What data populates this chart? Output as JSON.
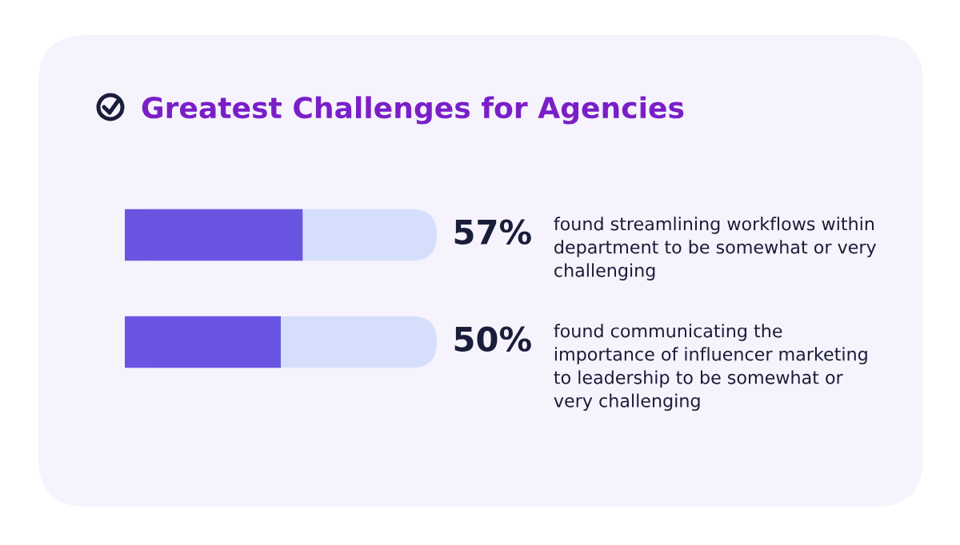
{
  "chart_data": {
    "type": "bar",
    "orientation": "horizontal",
    "title": "Greatest Challenges for Agencies",
    "categories": [
      "found streamlining workflows within\ndepartment to be somewhat or very\nchallenging",
      "found communicating the\nimportance of influencer marketing\nto leadership to be somewhat or\nvery challenging"
    ],
    "values": [
      57,
      50
    ],
    "value_labels": [
      "57%",
      "50%"
    ],
    "color": "#6a55e3",
    "xlim": [
      0,
      100
    ]
  }
}
